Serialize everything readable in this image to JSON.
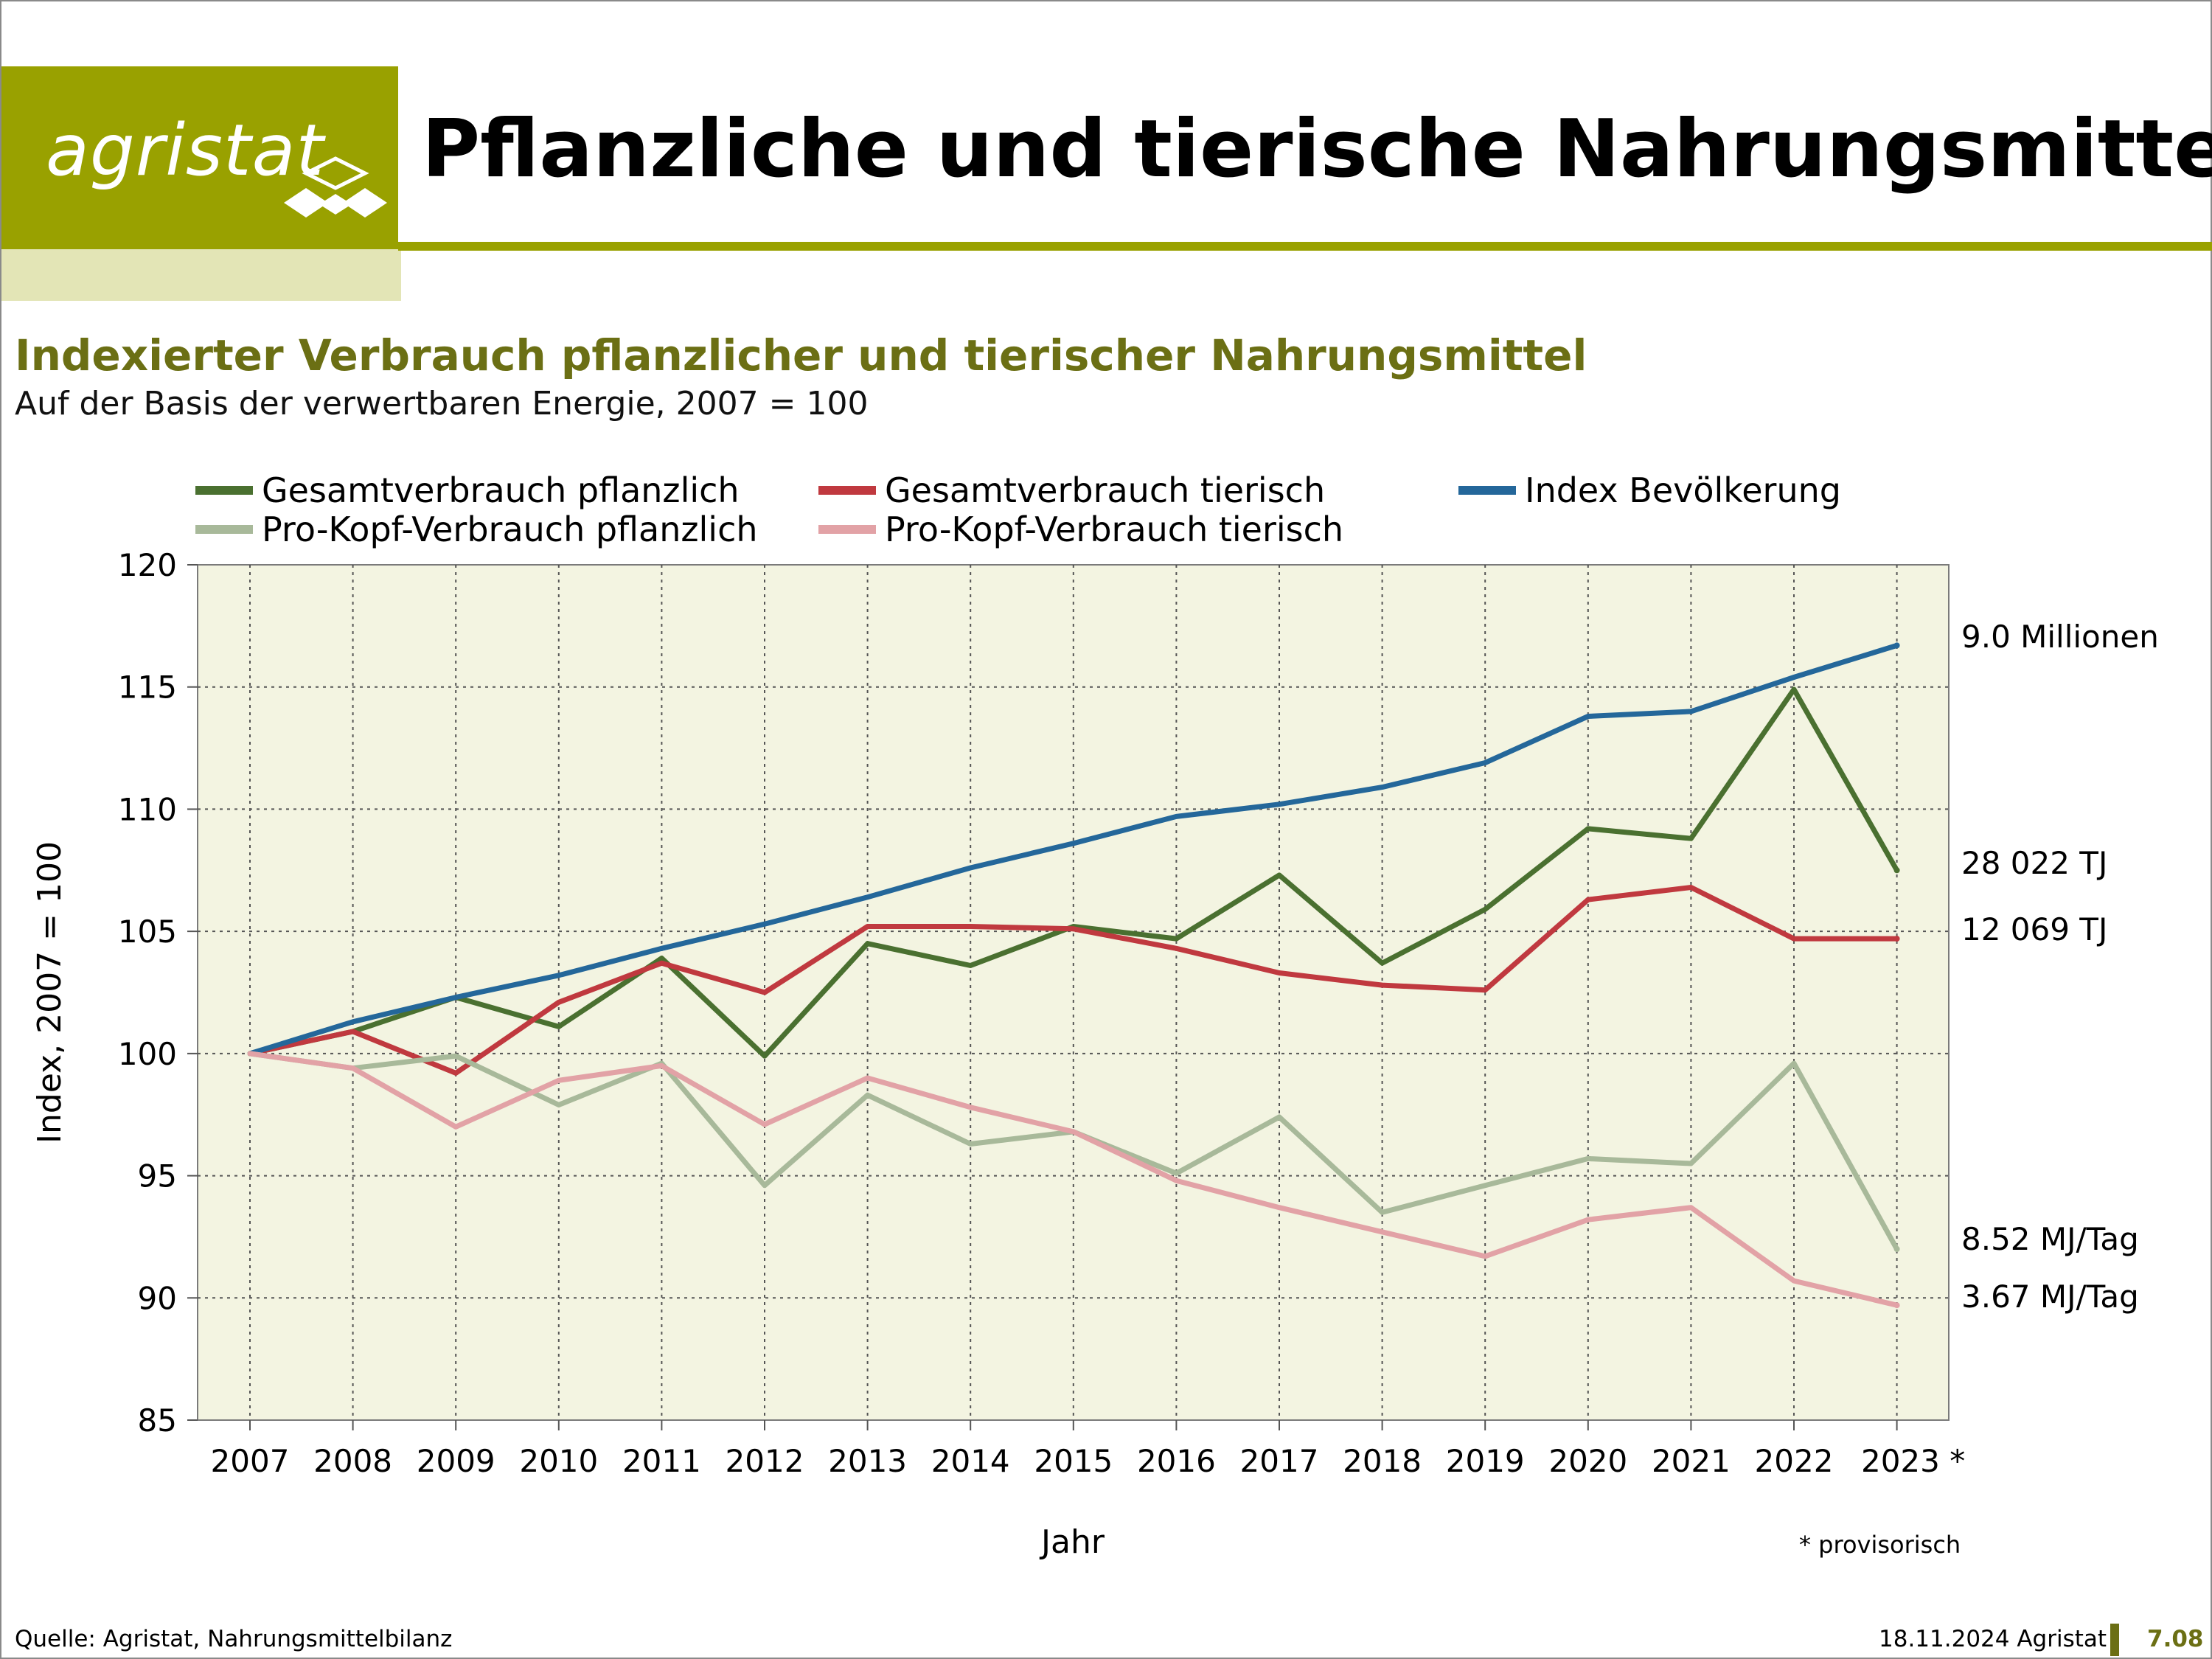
{
  "header": {
    "logo_text": "agristat",
    "title": "Pflanzliche und tierische Nahrungsmittel"
  },
  "chart_heading": {
    "title": "Indexierter Verbrauch pflanzlicher und tierischer Nahrungsmittel",
    "subtitle": "Auf der Basis der verwertbaren Energie, 2007 = 100"
  },
  "colors": {
    "brand": "#99a100",
    "brand_light": "#e3e5b6",
    "heading": "#6b6f14",
    "plot_bg": "#f3f4e1"
  },
  "chart_data": {
    "type": "line",
    "title": "Indexierter Verbrauch pflanzlicher und tierischer Nahrungsmittel",
    "xlabel": "Jahr",
    "ylabel": "Index, 2007 = 100",
    "ylim": [
      85,
      120
    ],
    "yticks": [
      85,
      90,
      95,
      100,
      105,
      110,
      115,
      120
    ],
    "grid": true,
    "legend_position": "top",
    "categories": [
      "2007",
      "2008",
      "2009",
      "2010",
      "2011",
      "2012",
      "2013",
      "2014",
      "2015",
      "2016",
      "2017",
      "2018",
      "2019",
      "2020",
      "2021",
      "2022",
      "2023 *"
    ],
    "series": [
      {
        "name": "Gesamtverbrauch pflanzlich",
        "color": "#4a7030",
        "width": 7,
        "values": [
          100,
          100.9,
          102.3,
          101.1,
          103.9,
          99.9,
          104.5,
          103.6,
          105.2,
          104.7,
          107.3,
          103.7,
          105.9,
          109.2,
          108.8,
          114.9,
          107.5
        ],
        "end_label": "28 022  TJ"
      },
      {
        "name": "Gesamtverbrauch tierisch",
        "color": "#c0393f",
        "width": 7,
        "values": [
          100,
          100.9,
          99.2,
          102.1,
          103.7,
          102.5,
          105.2,
          105.2,
          105.1,
          104.3,
          103.3,
          102.8,
          102.6,
          106.3,
          106.8,
          104.7,
          104.7
        ],
        "end_label": "12 069  TJ"
      },
      {
        "name": "Index Bevölkerung",
        "color": "#24679a",
        "width": 7,
        "values": [
          100,
          101.3,
          102.3,
          103.2,
          104.3,
          105.3,
          106.4,
          107.6,
          108.6,
          109.7,
          110.2,
          110.9,
          111.9,
          113.8,
          114.0,
          115.4,
          116.7
        ],
        "end_label": "9.0  Millionen"
      },
      {
        "name": "Pro-Kopf-Verbrauch pflanzlich",
        "color": "#a8b99a",
        "width": 7,
        "values": [
          100,
          99.4,
          99.9,
          97.9,
          99.6,
          94.6,
          98.3,
          96.3,
          96.8,
          95.1,
          97.4,
          93.5,
          94.6,
          95.7,
          95.5,
          99.6,
          92.0
        ],
        "end_label": "8.52  MJ/Tag"
      },
      {
        "name": "Pro-Kopf-Verbrauch tierisch",
        "color": "#e2a2a6",
        "width": 7,
        "values": [
          100,
          99.4,
          97.0,
          98.9,
          99.5,
          97.1,
          99.0,
          97.8,
          96.8,
          94.8,
          93.7,
          92.7,
          91.7,
          93.2,
          93.7,
          90.7,
          89.7
        ],
        "end_label": "3.67  MJ/Tag"
      }
    ],
    "note": "* provisorisch"
  },
  "footer": {
    "source": "Quelle: Agristat, Nahrungsmittelbilanz",
    "date": "18.11.2024 Agristat",
    "page": "7.08"
  }
}
